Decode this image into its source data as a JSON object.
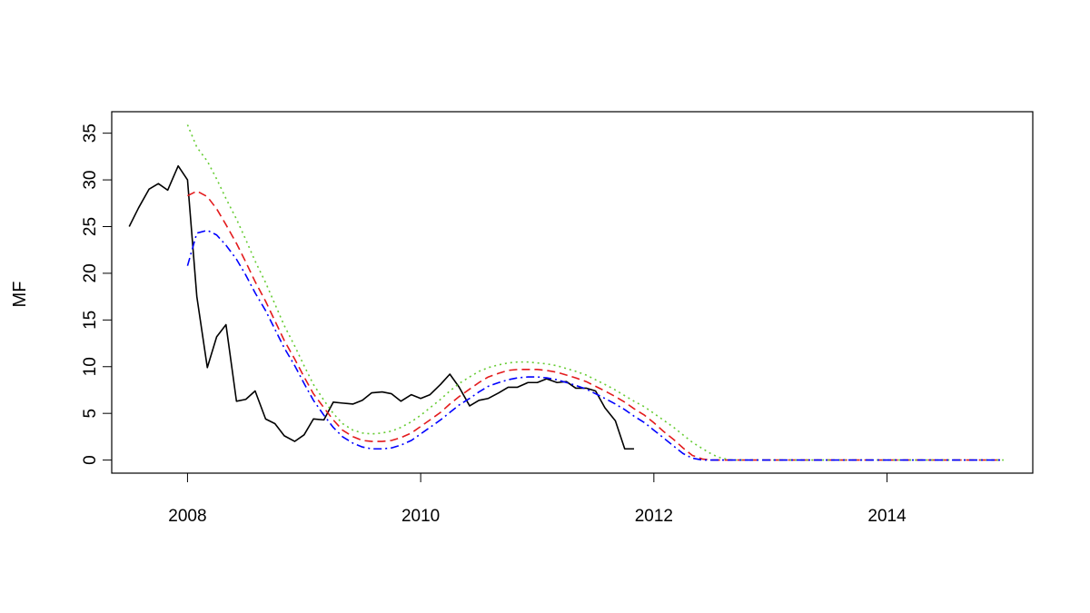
{
  "chart_data": {
    "type": "line",
    "title": "",
    "xlabel": "",
    "ylabel": "MF",
    "xlim": [
      2007.35,
      2015.25
    ],
    "ylim": [
      -1.4,
      37.3
    ],
    "x_ticks": [
      2008,
      2010,
      2012,
      2014
    ],
    "x_tick_labels": [
      "2008",
      "2010",
      "2012",
      "2014"
    ],
    "y_ticks": [
      0,
      5,
      10,
      15,
      20,
      25,
      30,
      35
    ],
    "y_tick_labels": [
      "0",
      "5",
      "10",
      "15",
      "20",
      "25",
      "30",
      "35"
    ],
    "grid": false,
    "legend": "none",
    "series": [
      {
        "color": "#000000",
        "dash": "solid",
        "points": [
          [
            2007.5,
            25.0
          ],
          [
            2007.58,
            27.0
          ],
          [
            2007.67,
            29.0
          ],
          [
            2007.75,
            29.6
          ],
          [
            2007.83,
            28.9
          ],
          [
            2007.92,
            31.5
          ],
          [
            2008.0,
            30.0
          ],
          [
            2008.08,
            17.5
          ],
          [
            2008.17,
            9.9
          ],
          [
            2008.25,
            13.2
          ],
          [
            2008.33,
            14.5
          ],
          [
            2008.42,
            6.3
          ],
          [
            2008.5,
            6.5
          ],
          [
            2008.58,
            7.4
          ],
          [
            2008.67,
            4.4
          ],
          [
            2008.75,
            3.9
          ],
          [
            2008.83,
            2.6
          ],
          [
            2008.92,
            2.0
          ],
          [
            2009.0,
            2.7
          ],
          [
            2009.08,
            4.4
          ],
          [
            2009.17,
            4.3
          ],
          [
            2009.25,
            6.2
          ],
          [
            2009.33,
            6.1
          ],
          [
            2009.42,
            6.0
          ],
          [
            2009.5,
            6.4
          ],
          [
            2009.58,
            7.2
          ],
          [
            2009.67,
            7.3
          ],
          [
            2009.75,
            7.1
          ],
          [
            2009.83,
            6.3
          ],
          [
            2009.92,
            7.0
          ],
          [
            2010.0,
            6.6
          ],
          [
            2010.08,
            7.0
          ],
          [
            2010.17,
            8.1
          ],
          [
            2010.25,
            9.2
          ],
          [
            2010.33,
            7.8
          ],
          [
            2010.42,
            5.8
          ],
          [
            2010.5,
            6.4
          ],
          [
            2010.58,
            6.6
          ],
          [
            2010.67,
            7.2
          ],
          [
            2010.75,
            7.8
          ],
          [
            2010.83,
            7.8
          ],
          [
            2010.92,
            8.3
          ],
          [
            2011.0,
            8.3
          ],
          [
            2011.08,
            8.7
          ],
          [
            2011.17,
            8.3
          ],
          [
            2011.25,
            8.4
          ],
          [
            2011.33,
            7.7
          ],
          [
            2011.42,
            7.7
          ],
          [
            2011.5,
            7.4
          ],
          [
            2011.58,
            5.6
          ],
          [
            2011.67,
            4.2
          ],
          [
            2011.75,
            1.2
          ],
          [
            2011.83,
            1.2
          ]
        ]
      },
      {
        "color": "#e31a1c",
        "dash": "dashed",
        "points": [
          [
            2008.0,
            28.3
          ],
          [
            2008.08,
            28.8
          ],
          [
            2008.17,
            28.2
          ],
          [
            2008.25,
            26.9
          ],
          [
            2008.33,
            25.2
          ],
          [
            2008.42,
            23.2
          ],
          [
            2008.5,
            21.2
          ],
          [
            2008.58,
            19.1
          ],
          [
            2008.67,
            17.0
          ],
          [
            2008.75,
            14.9
          ],
          [
            2008.83,
            12.8
          ],
          [
            2008.92,
            10.8
          ],
          [
            2009.0,
            8.9
          ],
          [
            2009.08,
            7.1
          ],
          [
            2009.17,
            5.6
          ],
          [
            2009.25,
            4.3
          ],
          [
            2009.33,
            3.2
          ],
          [
            2009.42,
            2.5
          ],
          [
            2009.5,
            2.1
          ],
          [
            2009.58,
            2.0
          ],
          [
            2009.67,
            2.0
          ],
          [
            2009.75,
            2.1
          ],
          [
            2009.83,
            2.4
          ],
          [
            2009.92,
            2.9
          ],
          [
            2010.0,
            3.6
          ],
          [
            2010.08,
            4.3
          ],
          [
            2010.17,
            5.1
          ],
          [
            2010.25,
            6.0
          ],
          [
            2010.33,
            6.8
          ],
          [
            2010.42,
            7.6
          ],
          [
            2010.5,
            8.3
          ],
          [
            2010.58,
            8.9
          ],
          [
            2010.67,
            9.3
          ],
          [
            2010.75,
            9.6
          ],
          [
            2010.83,
            9.7
          ],
          [
            2010.92,
            9.7
          ],
          [
            2011.0,
            9.7
          ],
          [
            2011.08,
            9.6
          ],
          [
            2011.17,
            9.4
          ],
          [
            2011.25,
            9.1
          ],
          [
            2011.33,
            8.8
          ],
          [
            2011.42,
            8.4
          ],
          [
            2011.5,
            7.9
          ],
          [
            2011.58,
            7.4
          ],
          [
            2011.67,
            6.8
          ],
          [
            2011.75,
            6.2
          ],
          [
            2011.83,
            5.5
          ],
          [
            2011.92,
            4.8
          ],
          [
            2012.0,
            4.0
          ],
          [
            2012.08,
            3.1
          ],
          [
            2012.17,
            2.2
          ],
          [
            2012.25,
            1.3
          ],
          [
            2012.33,
            0.5
          ],
          [
            2012.42,
            0.1
          ],
          [
            2012.5,
            0.0
          ],
          [
            2013.0,
            0.0
          ],
          [
            2014.0,
            0.0
          ],
          [
            2015.0,
            0.0
          ]
        ]
      },
      {
        "color": "#66cc33",
        "dash": "dotted",
        "points": [
          [
            2008.0,
            35.9
          ],
          [
            2008.08,
            33.5
          ],
          [
            2008.17,
            32.0
          ],
          [
            2008.25,
            30.1
          ],
          [
            2008.33,
            28.0
          ],
          [
            2008.42,
            25.8
          ],
          [
            2008.5,
            23.6
          ],
          [
            2008.58,
            21.3
          ],
          [
            2008.67,
            19.0
          ],
          [
            2008.75,
            16.7
          ],
          [
            2008.83,
            14.4
          ],
          [
            2008.92,
            12.2
          ],
          [
            2009.0,
            10.1
          ],
          [
            2009.08,
            8.1
          ],
          [
            2009.17,
            6.4
          ],
          [
            2009.25,
            5.0
          ],
          [
            2009.33,
            3.9
          ],
          [
            2009.42,
            3.2
          ],
          [
            2009.5,
            2.9
          ],
          [
            2009.58,
            2.8
          ],
          [
            2009.67,
            2.9
          ],
          [
            2009.75,
            3.1
          ],
          [
            2009.83,
            3.5
          ],
          [
            2009.92,
            4.1
          ],
          [
            2010.0,
            4.8
          ],
          [
            2010.08,
            5.6
          ],
          [
            2010.17,
            6.5
          ],
          [
            2010.25,
            7.4
          ],
          [
            2010.33,
            8.2
          ],
          [
            2010.42,
            8.9
          ],
          [
            2010.5,
            9.5
          ],
          [
            2010.58,
            9.9
          ],
          [
            2010.67,
            10.2
          ],
          [
            2010.75,
            10.4
          ],
          [
            2010.83,
            10.5
          ],
          [
            2010.92,
            10.5
          ],
          [
            2011.0,
            10.4
          ],
          [
            2011.08,
            10.3
          ],
          [
            2011.17,
            10.1
          ],
          [
            2011.25,
            9.8
          ],
          [
            2011.33,
            9.5
          ],
          [
            2011.42,
            9.1
          ],
          [
            2011.5,
            8.6
          ],
          [
            2011.58,
            8.1
          ],
          [
            2011.67,
            7.5
          ],
          [
            2011.75,
            6.9
          ],
          [
            2011.83,
            6.3
          ],
          [
            2011.92,
            5.7
          ],
          [
            2012.0,
            5.0
          ],
          [
            2012.08,
            4.3
          ],
          [
            2012.17,
            3.5
          ],
          [
            2012.25,
            2.7
          ],
          [
            2012.33,
            1.9
          ],
          [
            2012.42,
            1.2
          ],
          [
            2012.5,
            0.6
          ],
          [
            2012.58,
            0.2
          ],
          [
            2012.67,
            0.0
          ],
          [
            2013.0,
            0.0
          ],
          [
            2014.0,
            0.0
          ],
          [
            2015.0,
            0.0
          ]
        ]
      },
      {
        "color": "#0000ff",
        "dash": "dashdot",
        "points": [
          [
            2008.0,
            20.8
          ],
          [
            2008.08,
            24.3
          ],
          [
            2008.17,
            24.6
          ],
          [
            2008.25,
            24.1
          ],
          [
            2008.33,
            23.0
          ],
          [
            2008.42,
            21.5
          ],
          [
            2008.5,
            19.8
          ],
          [
            2008.58,
            17.9
          ],
          [
            2008.67,
            16.0
          ],
          [
            2008.75,
            14.0
          ],
          [
            2008.83,
            12.0
          ],
          [
            2008.92,
            10.1
          ],
          [
            2009.0,
            8.2
          ],
          [
            2009.08,
            6.4
          ],
          [
            2009.17,
            4.8
          ],
          [
            2009.25,
            3.5
          ],
          [
            2009.33,
            2.5
          ],
          [
            2009.42,
            1.8
          ],
          [
            2009.5,
            1.4
          ],
          [
            2009.58,
            1.2
          ],
          [
            2009.67,
            1.2
          ],
          [
            2009.75,
            1.3
          ],
          [
            2009.83,
            1.6
          ],
          [
            2009.92,
            2.1
          ],
          [
            2010.0,
            2.8
          ],
          [
            2010.08,
            3.5
          ],
          [
            2010.17,
            4.3
          ],
          [
            2010.25,
            5.1
          ],
          [
            2010.33,
            5.9
          ],
          [
            2010.42,
            6.6
          ],
          [
            2010.5,
            7.3
          ],
          [
            2010.58,
            7.9
          ],
          [
            2010.67,
            8.3
          ],
          [
            2010.75,
            8.6
          ],
          [
            2010.83,
            8.8
          ],
          [
            2010.92,
            8.9
          ],
          [
            2011.0,
            8.9
          ],
          [
            2011.08,
            8.8
          ],
          [
            2011.17,
            8.6
          ],
          [
            2011.25,
            8.3
          ],
          [
            2011.33,
            8.0
          ],
          [
            2011.42,
            7.6
          ],
          [
            2011.5,
            7.1
          ],
          [
            2011.58,
            6.6
          ],
          [
            2011.67,
            6.0
          ],
          [
            2011.75,
            5.4
          ],
          [
            2011.83,
            4.7
          ],
          [
            2011.92,
            4.0
          ],
          [
            2012.0,
            3.2
          ],
          [
            2012.08,
            2.4
          ],
          [
            2012.17,
            1.5
          ],
          [
            2012.25,
            0.7
          ],
          [
            2012.33,
            0.2
          ],
          [
            2012.42,
            0.0
          ],
          [
            2013.0,
            0.0
          ],
          [
            2014.0,
            0.0
          ],
          [
            2015.0,
            0.0
          ]
        ]
      }
    ]
  }
}
